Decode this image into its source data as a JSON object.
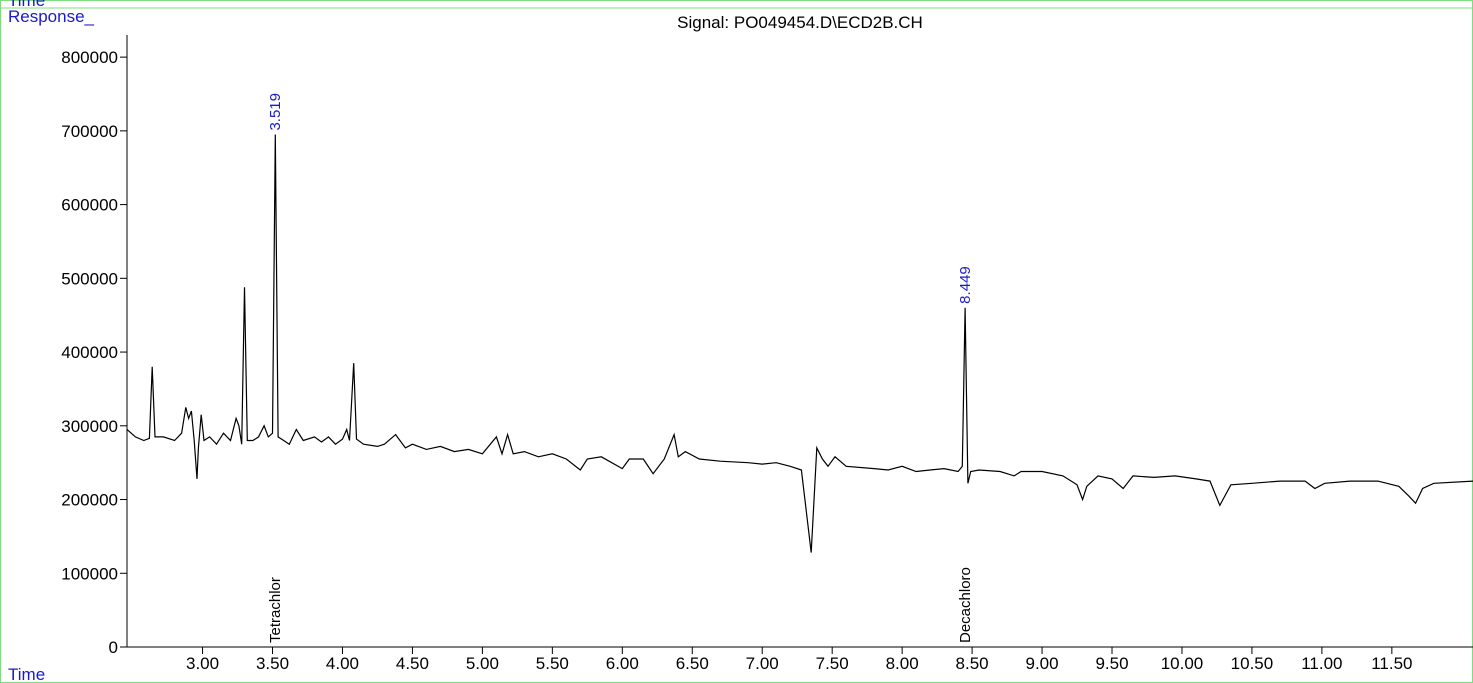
{
  "chart_data": {
    "type": "line",
    "corner_label": "Time",
    "y_label": "Response_",
    "title": "Signal: PO049454.D\\ECD2B.CH",
    "x_label": "Time",
    "color": "#000000",
    "xlim": [
      2.46,
      12.08
    ],
    "ylim": [
      0,
      830000
    ],
    "xticks": [
      {
        "value": 3,
        "label": "3.00"
      },
      {
        "value": 3.5,
        "label": "3.50"
      },
      {
        "value": 4,
        "label": "4.00"
      },
      {
        "value": 4.5,
        "label": "4.50"
      },
      {
        "value": 5,
        "label": "5.00"
      },
      {
        "value": 5.5,
        "label": "5.50"
      },
      {
        "value": 6,
        "label": "6.00"
      },
      {
        "value": 6.5,
        "label": "6.50"
      },
      {
        "value": 7,
        "label": "7.00"
      },
      {
        "value": 7.5,
        "label": "7.50"
      },
      {
        "value": 8,
        "label": "8.00"
      },
      {
        "value": 8.5,
        "label": "8.50"
      },
      {
        "value": 9,
        "label": "9.00"
      },
      {
        "value": 9.5,
        "label": "9.50"
      },
      {
        "value": 10,
        "label": "10.00"
      },
      {
        "value": 10.5,
        "label": "10.50"
      },
      {
        "value": 11,
        "label": "11.00"
      },
      {
        "value": 11.5,
        "label": "11.50"
      }
    ],
    "yticks": [
      0,
      100000,
      200000,
      300000,
      400000,
      500000,
      600000,
      700000,
      800000
    ],
    "peaks": [
      {
        "rt": 3.519,
        "compound": "Tetrachlor"
      },
      {
        "rt": 8.449,
        "compound": "Decachloro"
      }
    ],
    "x": [
      2.46,
      2.52,
      2.58,
      2.62,
      2.64,
      2.66,
      2.72,
      2.8,
      2.85,
      2.88,
      2.9,
      2.92,
      2.94,
      2.96,
      2.97,
      2.99,
      3.01,
      3.05,
      3.1,
      3.15,
      3.2,
      3.24,
      3.26,
      3.28,
      3.3,
      3.32,
      3.36,
      3.4,
      3.44,
      3.47,
      3.5,
      3.52,
      3.54,
      3.58,
      3.62,
      3.67,
      3.72,
      3.8,
      3.85,
      3.9,
      3.95,
      4.0,
      4.03,
      4.05,
      4.08,
      4.1,
      4.15,
      4.25,
      4.3,
      4.38,
      4.45,
      4.5,
      4.6,
      4.7,
      4.8,
      4.9,
      5.0,
      5.1,
      5.14,
      5.18,
      5.22,
      5.3,
      5.4,
      5.5,
      5.6,
      5.7,
      5.75,
      5.85,
      6.0,
      6.05,
      6.15,
      6.22,
      6.3,
      6.37,
      6.4,
      6.45,
      6.55,
      6.7,
      6.9,
      7.0,
      7.1,
      7.2,
      7.28,
      7.35,
      7.39,
      7.43,
      7.47,
      7.52,
      7.6,
      7.8,
      7.9,
      8.0,
      8.1,
      8.2,
      8.3,
      8.4,
      8.43,
      8.45,
      8.47,
      8.49,
      8.55,
      8.7,
      8.8,
      8.85,
      9.0,
      9.15,
      9.25,
      9.29,
      9.32,
      9.4,
      9.5,
      9.58,
      9.65,
      9.8,
      9.95,
      10.1,
      10.2,
      10.27,
      10.35,
      10.5,
      10.7,
      10.88,
      10.95,
      11.02,
      11.2,
      11.4,
      11.55,
      11.62,
      11.67,
      11.72,
      11.8,
      12.08
    ],
    "values": [
      295000,
      285000,
      280000,
      283000,
      380000,
      285000,
      285000,
      280000,
      290000,
      325000,
      310000,
      320000,
      280000,
      228000,
      270000,
      315000,
      280000,
      285000,
      275000,
      290000,
      280000,
      310000,
      300000,
      275000,
      488000,
      280000,
      280000,
      285000,
      300000,
      285000,
      290000,
      695000,
      285000,
      280000,
      275000,
      295000,
      280000,
      285000,
      278000,
      285000,
      275000,
      282000,
      295000,
      280000,
      385000,
      282000,
      275000,
      272000,
      275000,
      288000,
      270000,
      275000,
      268000,
      272000,
      265000,
      268000,
      262000,
      285000,
      262000,
      288000,
      262000,
      265000,
      258000,
      262000,
      255000,
      240000,
      255000,
      258000,
      242000,
      255000,
      255000,
      235000,
      255000,
      288000,
      258000,
      265000,
      255000,
      252000,
      250000,
      248000,
      250000,
      245000,
      240000,
      128000,
      270000,
      255000,
      245000,
      258000,
      245000,
      242000,
      240000,
      245000,
      238000,
      240000,
      242000,
      238000,
      245000,
      460000,
      222000,
      238000,
      240000,
      238000,
      232000,
      238000,
      238000,
      232000,
      220000,
      200000,
      218000,
      232000,
      228000,
      215000,
      232000,
      230000,
      232000,
      228000,
      225000,
      192000,
      220000,
      222000,
      225000,
      225000,
      215000,
      222000,
      225000,
      225000,
      218000,
      205000,
      195000,
      215000,
      222000,
      225000
    ]
  }
}
